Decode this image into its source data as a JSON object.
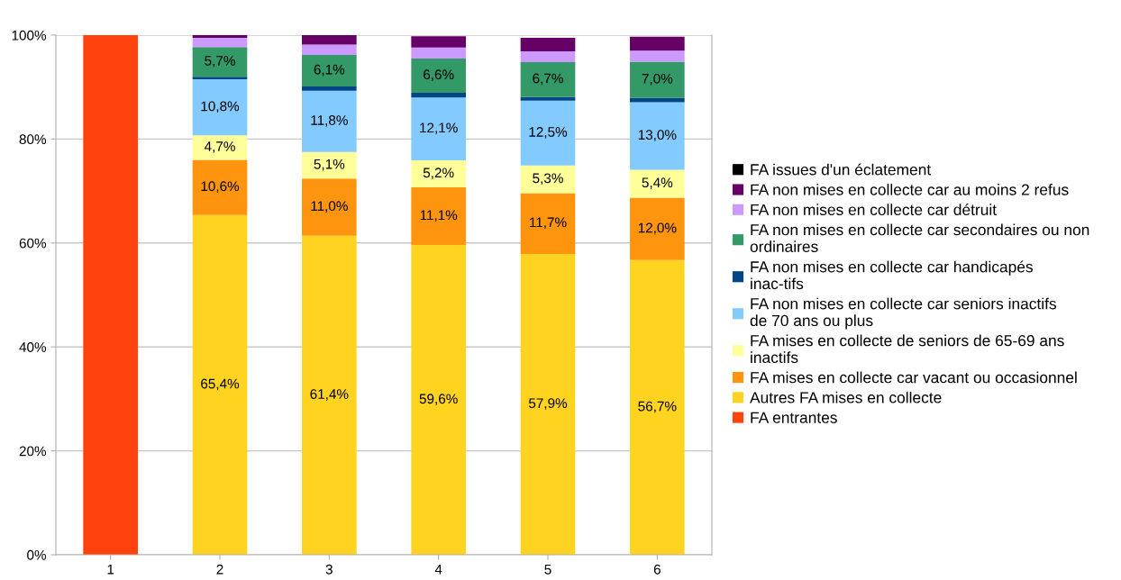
{
  "chart_data": {
    "type": "bar",
    "stacked": true,
    "categories": [
      "1",
      "2",
      "3",
      "4",
      "5",
      "6"
    ],
    "series": [
      {
        "name": "FA entrantes",
        "color": "#ff420e",
        "values": [
          100,
          null,
          null,
          null,
          null,
          null
        ]
      },
      {
        "name": "Autres FA mises en collecte",
        "color": "#ffd320",
        "values": [
          null,
          65.4,
          61.4,
          59.6,
          57.9,
          56.7
        ],
        "value_labels": [
          null,
          "65,4%",
          "61,4%",
          "59,6%",
          "57,9%",
          "56,7%"
        ]
      },
      {
        "name": "FA mises en collecte car vacant ou occasionnel",
        "color": "#ff950e",
        "values": [
          null,
          10.6,
          11.0,
          11.1,
          11.7,
          12.0
        ],
        "value_labels": [
          null,
          "10,6%",
          "11,0%",
          "11,1%",
          "11,7%",
          "12,0%"
        ]
      },
      {
        "name": "FA mises en collecte de seniors de 65-69 ans inactifs",
        "color": "#ffff99",
        "values": [
          null,
          4.7,
          5.1,
          5.2,
          5.3,
          5.4
        ],
        "value_labels": [
          null,
          "4,7%",
          "5,1%",
          "5,2%",
          "5,3%",
          "5,4%"
        ]
      },
      {
        "name": "FA non mises en collecte car seniors inactifs de 70 ans ou plus",
        "color": "#83caff",
        "values": [
          null,
          10.8,
          11.8,
          12.1,
          12.5,
          13.0
        ],
        "value_labels": [
          null,
          "10,8%",
          "11,8%",
          "12,1%",
          "12,5%",
          "13,0%"
        ]
      },
      {
        "name": "FA non mises en collecte car handicapés inac-tifs",
        "color": "#004586",
        "values": [
          null,
          0.5,
          0.8,
          0.9,
          0.7,
          0.8
        ]
      },
      {
        "name": "FA non mises en collecte car secondaires ou non ordinaires",
        "color": "#339966",
        "values": [
          null,
          5.7,
          6.1,
          6.6,
          6.7,
          7.0
        ],
        "value_labels": [
          null,
          "5,7%",
          "6,1%",
          "6,6%",
          "6,7%",
          "7,0%"
        ]
      },
      {
        "name": "FA non mises en collecte car détruit",
        "color": "#cc99ff",
        "values": [
          null,
          1.8,
          2.0,
          2.1,
          2.1,
          2.1
        ]
      },
      {
        "name": "FA non mises en collecte car au moins 2 refus",
        "color": "#660066",
        "values": [
          null,
          0.5,
          1.8,
          2.2,
          2.6,
          2.7
        ]
      },
      {
        "name": "FA issues d'un éclatement",
        "color": "#000000",
        "values": [
          null,
          null,
          null,
          null,
          null,
          null
        ]
      }
    ],
    "ylim": [
      0,
      100
    ],
    "yticks": [
      {
        "value": 0,
        "label": "0%"
      },
      {
        "value": 20,
        "label": "20%"
      },
      {
        "value": 40,
        "label": "40%"
      },
      {
        "value": 60,
        "label": "60%"
      },
      {
        "value": 80,
        "label": "80%"
      },
      {
        "value": 100,
        "label": "100%"
      }
    ],
    "grid": "y",
    "legend": "right"
  }
}
